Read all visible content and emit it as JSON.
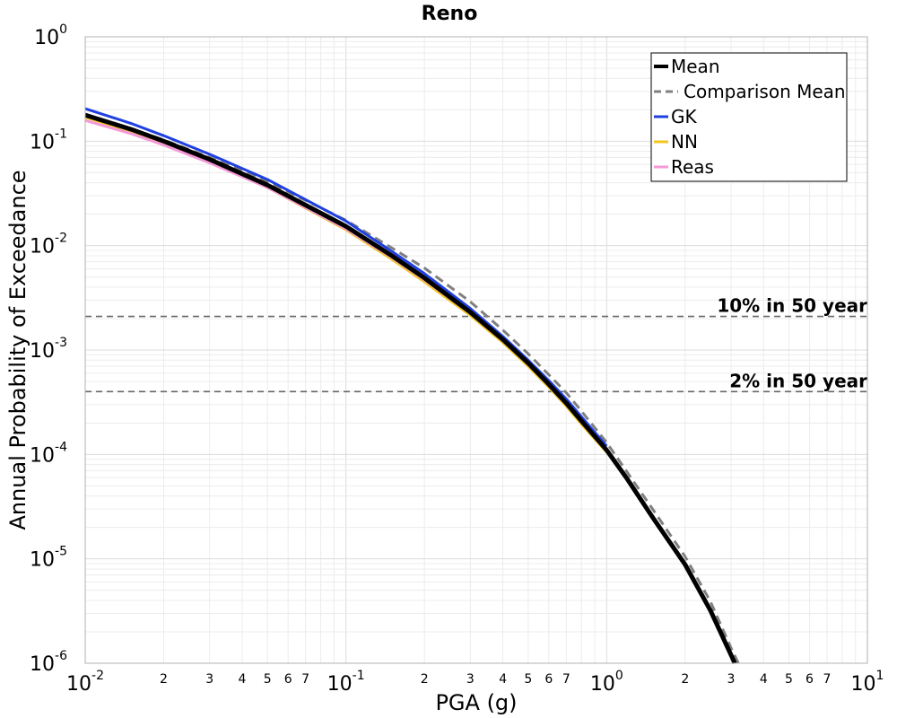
{
  "chart_data": {
    "type": "line",
    "title": "Reno",
    "xlabel": "PGA (g)",
    "ylabel": "Annual Probability of Exceedance",
    "xscale": "log",
    "yscale": "log",
    "xlim": [
      0.01,
      10
    ],
    "ylim": [
      1e-06,
      1
    ],
    "grid": true,
    "legend_position": "top-right",
    "x_major_ticks": [
      {
        "value": 0.01,
        "base": "10",
        "exp": "-2"
      },
      {
        "value": 0.1,
        "base": "10",
        "exp": "-1"
      },
      {
        "value": 1,
        "base": "10",
        "exp": "0"
      },
      {
        "value": 10,
        "base": "10",
        "exp": "1"
      }
    ],
    "x_minor_tick_labels": [
      "2",
      "3",
      "4",
      "5",
      "6",
      "7"
    ],
    "y_major_ticks": [
      {
        "value": 1,
        "base": "10",
        "exp": "0"
      },
      {
        "value": 0.1,
        "base": "10",
        "exp": "-1"
      },
      {
        "value": 0.01,
        "base": "10",
        "exp": "-2"
      },
      {
        "value": 0.001,
        "base": "10",
        "exp": "-3"
      },
      {
        "value": 0.0001,
        "base": "10",
        "exp": "-4"
      },
      {
        "value": 1e-05,
        "base": "10",
        "exp": "-5"
      },
      {
        "value": 1e-06,
        "base": "10",
        "exp": "-6"
      }
    ],
    "reference_lines": [
      {
        "label": "10% in 50 year",
        "y": 0.0021
      },
      {
        "label": "2% in 50 year",
        "y": 0.0004
      }
    ],
    "series": [
      {
        "name": "Comparison Mean",
        "color": "#808080",
        "style": "dashed",
        "width": 3,
        "x": [
          0.01,
          0.015,
          0.02,
          0.03,
          0.05,
          0.1,
          0.15,
          0.2,
          0.3,
          0.4,
          0.5,
          0.6,
          0.7,
          0.8,
          1.0,
          1.5,
          2.0,
          2.5,
          3.0,
          3.2
        ],
        "y": [
          0.18,
          0.132,
          0.103,
          0.07,
          0.041,
          0.0175,
          0.0095,
          0.0061,
          0.0029,
          0.00155,
          0.00092,
          0.00058,
          0.00039,
          0.00026,
          0.00013,
          3e-05,
          1.05e-05,
          3.9e-06,
          1.4e-06,
          1e-06
        ]
      },
      {
        "name": "GK",
        "color": "#1f3fe0",
        "style": "solid",
        "width": 3,
        "x": [
          0.01,
          0.015,
          0.02,
          0.03,
          0.05,
          0.1,
          0.15,
          0.2,
          0.3,
          0.4,
          0.5,
          0.6,
          0.7,
          0.8,
          1.0
        ],
        "y": [
          0.205,
          0.148,
          0.113,
          0.075,
          0.043,
          0.0172,
          0.0088,
          0.0054,
          0.0025,
          0.00135,
          0.0008,
          0.00051,
          0.00034,
          0.00023,
          0.00012
        ]
      },
      {
        "name": "NN",
        "color": "#f2c521",
        "style": "solid",
        "width": 3,
        "x": [
          0.01,
          0.015,
          0.02,
          0.03,
          0.05,
          0.1,
          0.15,
          0.2,
          0.3,
          0.4,
          0.5,
          0.6,
          0.7,
          0.8,
          1.0
        ],
        "y": [
          0.17,
          0.124,
          0.095,
          0.063,
          0.036,
          0.0142,
          0.0074,
          0.0045,
          0.00215,
          0.00118,
          0.0007,
          0.00044,
          0.00029,
          0.000195,
          0.000105
        ]
      },
      {
        "name": "Reas",
        "color": "#f598d8",
        "style": "solid",
        "width": 3,
        "x": [
          0.01,
          0.015,
          0.02,
          0.03,
          0.05,
          0.1,
          0.15,
          0.2,
          0.3,
          0.4,
          0.5,
          0.6,
          0.7,
          0.8,
          1.0
        ],
        "y": [
          0.158,
          0.118,
          0.092,
          0.062,
          0.036,
          0.0145,
          0.0077,
          0.0047,
          0.00225,
          0.00123,
          0.00073,
          0.00046,
          0.00031,
          0.000205,
          0.00011
        ]
      },
      {
        "name": "Mean",
        "color": "#000000",
        "style": "solid",
        "width": 5,
        "x": [
          0.01,
          0.015,
          0.02,
          0.03,
          0.05,
          0.1,
          0.15,
          0.2,
          0.3,
          0.4,
          0.5,
          0.6,
          0.7,
          0.8,
          1.0,
          1.2,
          1.5,
          2.0,
          2.5,
          3.0,
          3.1
        ],
        "y": [
          0.178,
          0.13,
          0.1,
          0.067,
          0.038,
          0.0153,
          0.008,
          0.0049,
          0.0023,
          0.00126,
          0.00075,
          0.00047,
          0.00031,
          0.00021,
          0.00011,
          5.8e-05,
          2.5e-05,
          8.8e-06,
          3.2e-06,
          1.2e-06,
          1e-06
        ]
      }
    ],
    "legend_order": [
      "Mean",
      "Comparison Mean",
      "GK",
      "NN",
      "Reas"
    ]
  }
}
